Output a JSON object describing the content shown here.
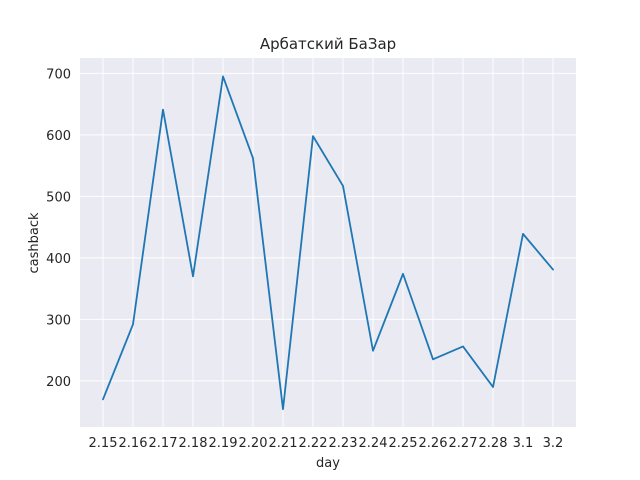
{
  "chart_data": {
    "type": "line",
    "title": "Арбатский БаЗар",
    "xlabel": "day",
    "ylabel": "cashback",
    "x": [
      "2.15",
      "2.16",
      "2.17",
      "2.18",
      "2.19",
      "2.20",
      "2.21",
      "2.22",
      "2.23",
      "2.24",
      "2.25",
      "2.26",
      "2.27",
      "2.28",
      "3.1",
      "3.2"
    ],
    "series": [
      {
        "values": [
          170,
          292,
          641,
          370,
          695,
          562,
          154,
          598,
          517,
          249,
          374,
          235,
          256,
          190,
          439,
          381
        ]
      }
    ],
    "yticks": [
      200,
      300,
      400,
      500,
      600,
      700
    ],
    "ylim": [
      125,
      725
    ],
    "grid": true,
    "colors": {
      "background": "#eaeaf2",
      "grid": "#ffffff",
      "line": "#1f77b4",
      "text": "#262626"
    }
  }
}
